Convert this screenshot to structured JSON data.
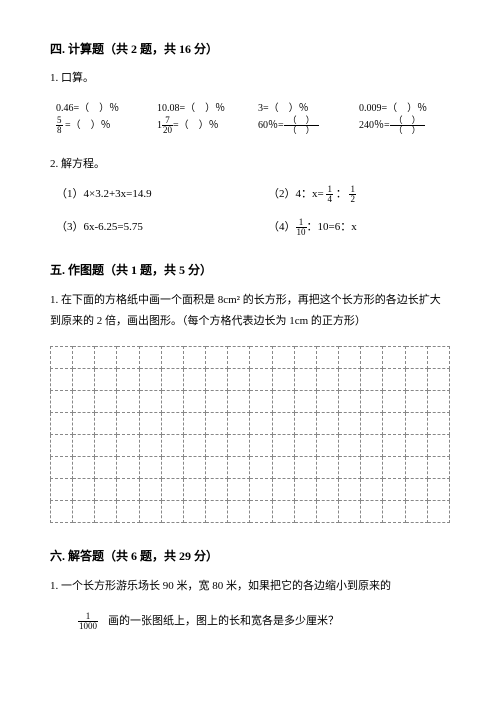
{
  "section4": {
    "title": "四. 计算题（共 2 题，共 16 分）",
    "q1": "1. 口算。",
    "calc": [
      "0.46=（　）％",
      "10.08=（　）％",
      "3=（　）％",
      "0.009=（　）％"
    ],
    "calc2": [
      {
        "frac": {
          "n": "5",
          "d": "8"
        },
        "rest": " =（　）％"
      },
      {
        "pre": "1",
        "frac": {
          "n": "7",
          "d": "20"
        },
        "rest": "=（　）％"
      },
      {
        "text": "60％=",
        "wfrac": {
          "n": "（　）",
          "d": "（　）"
        }
      },
      {
        "text": "240％=",
        "wfrac": {
          "n": "（　）",
          "d": "（　）"
        }
      }
    ],
    "q2": "2. 解方程。",
    "eqs": {
      "e1": "（1）4×3.2+3x=14.9",
      "e2_pre": "（2）4：x= ",
      "e2_f1": {
        "n": "1",
        "d": "4"
      },
      "e2_mid": " ： ",
      "e2_f2": {
        "n": "1",
        "d": "2"
      },
      "e3": "（3）6x-6.25=5.75",
      "e4_pre": "（4）",
      "e4_f": {
        "n": "1",
        "d": "10"
      },
      "e4_rest": "：10=6：x"
    }
  },
  "section5": {
    "title": "五. 作图题（共 1 题，共 5 分）",
    "desc": "1. 在下面的方格纸中画一个面积是 8cm² 的长方形，再把这个长方形的各边长扩大到原来的 2 倍，画出图形。（每个方格代表边长为 1cm 的正方形）",
    "grid": {
      "cols": 18,
      "rows": 8
    }
  },
  "section6": {
    "title": "六. 解答题（共 6 题，共 29 分）",
    "q1_line1": "1. 一个长方形游乐场长 90 米，宽 80 米，如果把它的各边缩小到原来的",
    "q1_frac": {
      "n": "1",
      "d": "1000"
    },
    "q1_line2": "画的一张图纸上，图上的长和宽各是多少厘米？"
  }
}
